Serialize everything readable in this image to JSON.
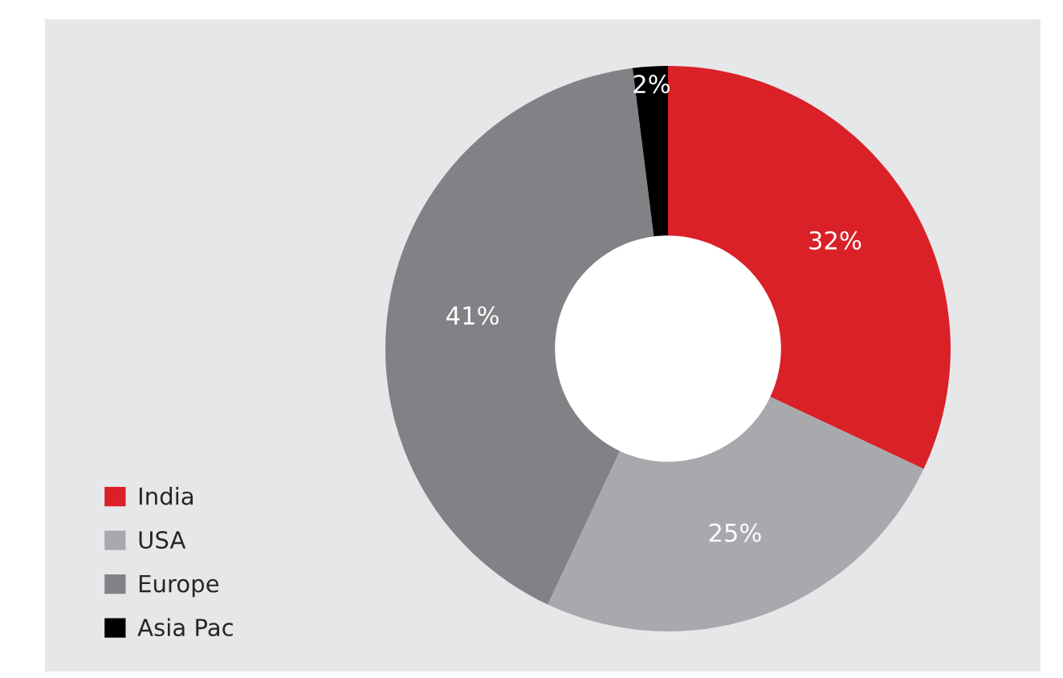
{
  "chart_data": {
    "type": "donut",
    "categories": [
      "India",
      "USA",
      "Europe",
      "Asia Pac"
    ],
    "values": [
      32,
      25,
      41,
      2
    ],
    "colors": [
      "#da2128",
      "#a7a9ac",
      "#808285",
      "#000000"
    ],
    "value_labels": [
      "32%",
      "25%",
      "41%",
      "2%"
    ],
    "legend": "bottom left"
  }
}
